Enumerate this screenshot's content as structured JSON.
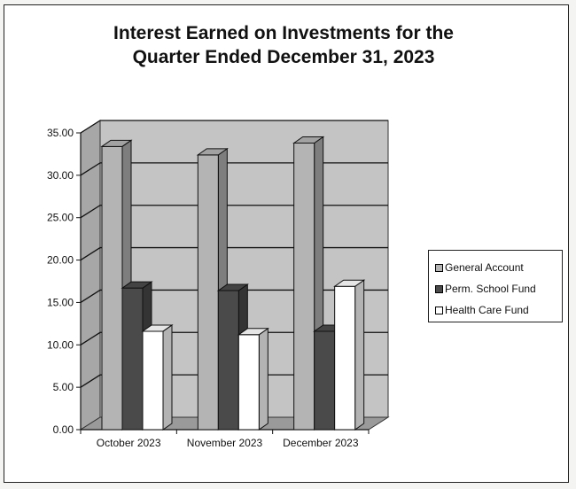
{
  "chart_data": {
    "type": "bar",
    "title_line1": "Interest Earned on Investments for the",
    "title_line2": "Quarter Ended December 31, 2023",
    "xlabel": "",
    "ylabel": "",
    "categories": [
      "October 2023",
      "November 2023",
      "December 2023"
    ],
    "series": [
      {
        "name": "General Account",
        "values": [
          33.4,
          32.4,
          33.8
        ],
        "color": "#b4b4b4"
      },
      {
        "name": "Perm. School Fund",
        "values": [
          16.7,
          16.4,
          11.6
        ],
        "color": "#4a4a4a"
      },
      {
        "name": "Health Care Fund",
        "values": [
          11.6,
          11.2,
          16.9
        ],
        "color": "#ffffff"
      }
    ],
    "ylim": [
      0,
      35
    ],
    "y_ticks": [
      "0.00",
      "5.00",
      "10.00",
      "15.00",
      "20.00",
      "25.00",
      "30.00",
      "35.00"
    ],
    "grid": true,
    "legend_position": "right",
    "wall_color": "#c4c4c4"
  }
}
